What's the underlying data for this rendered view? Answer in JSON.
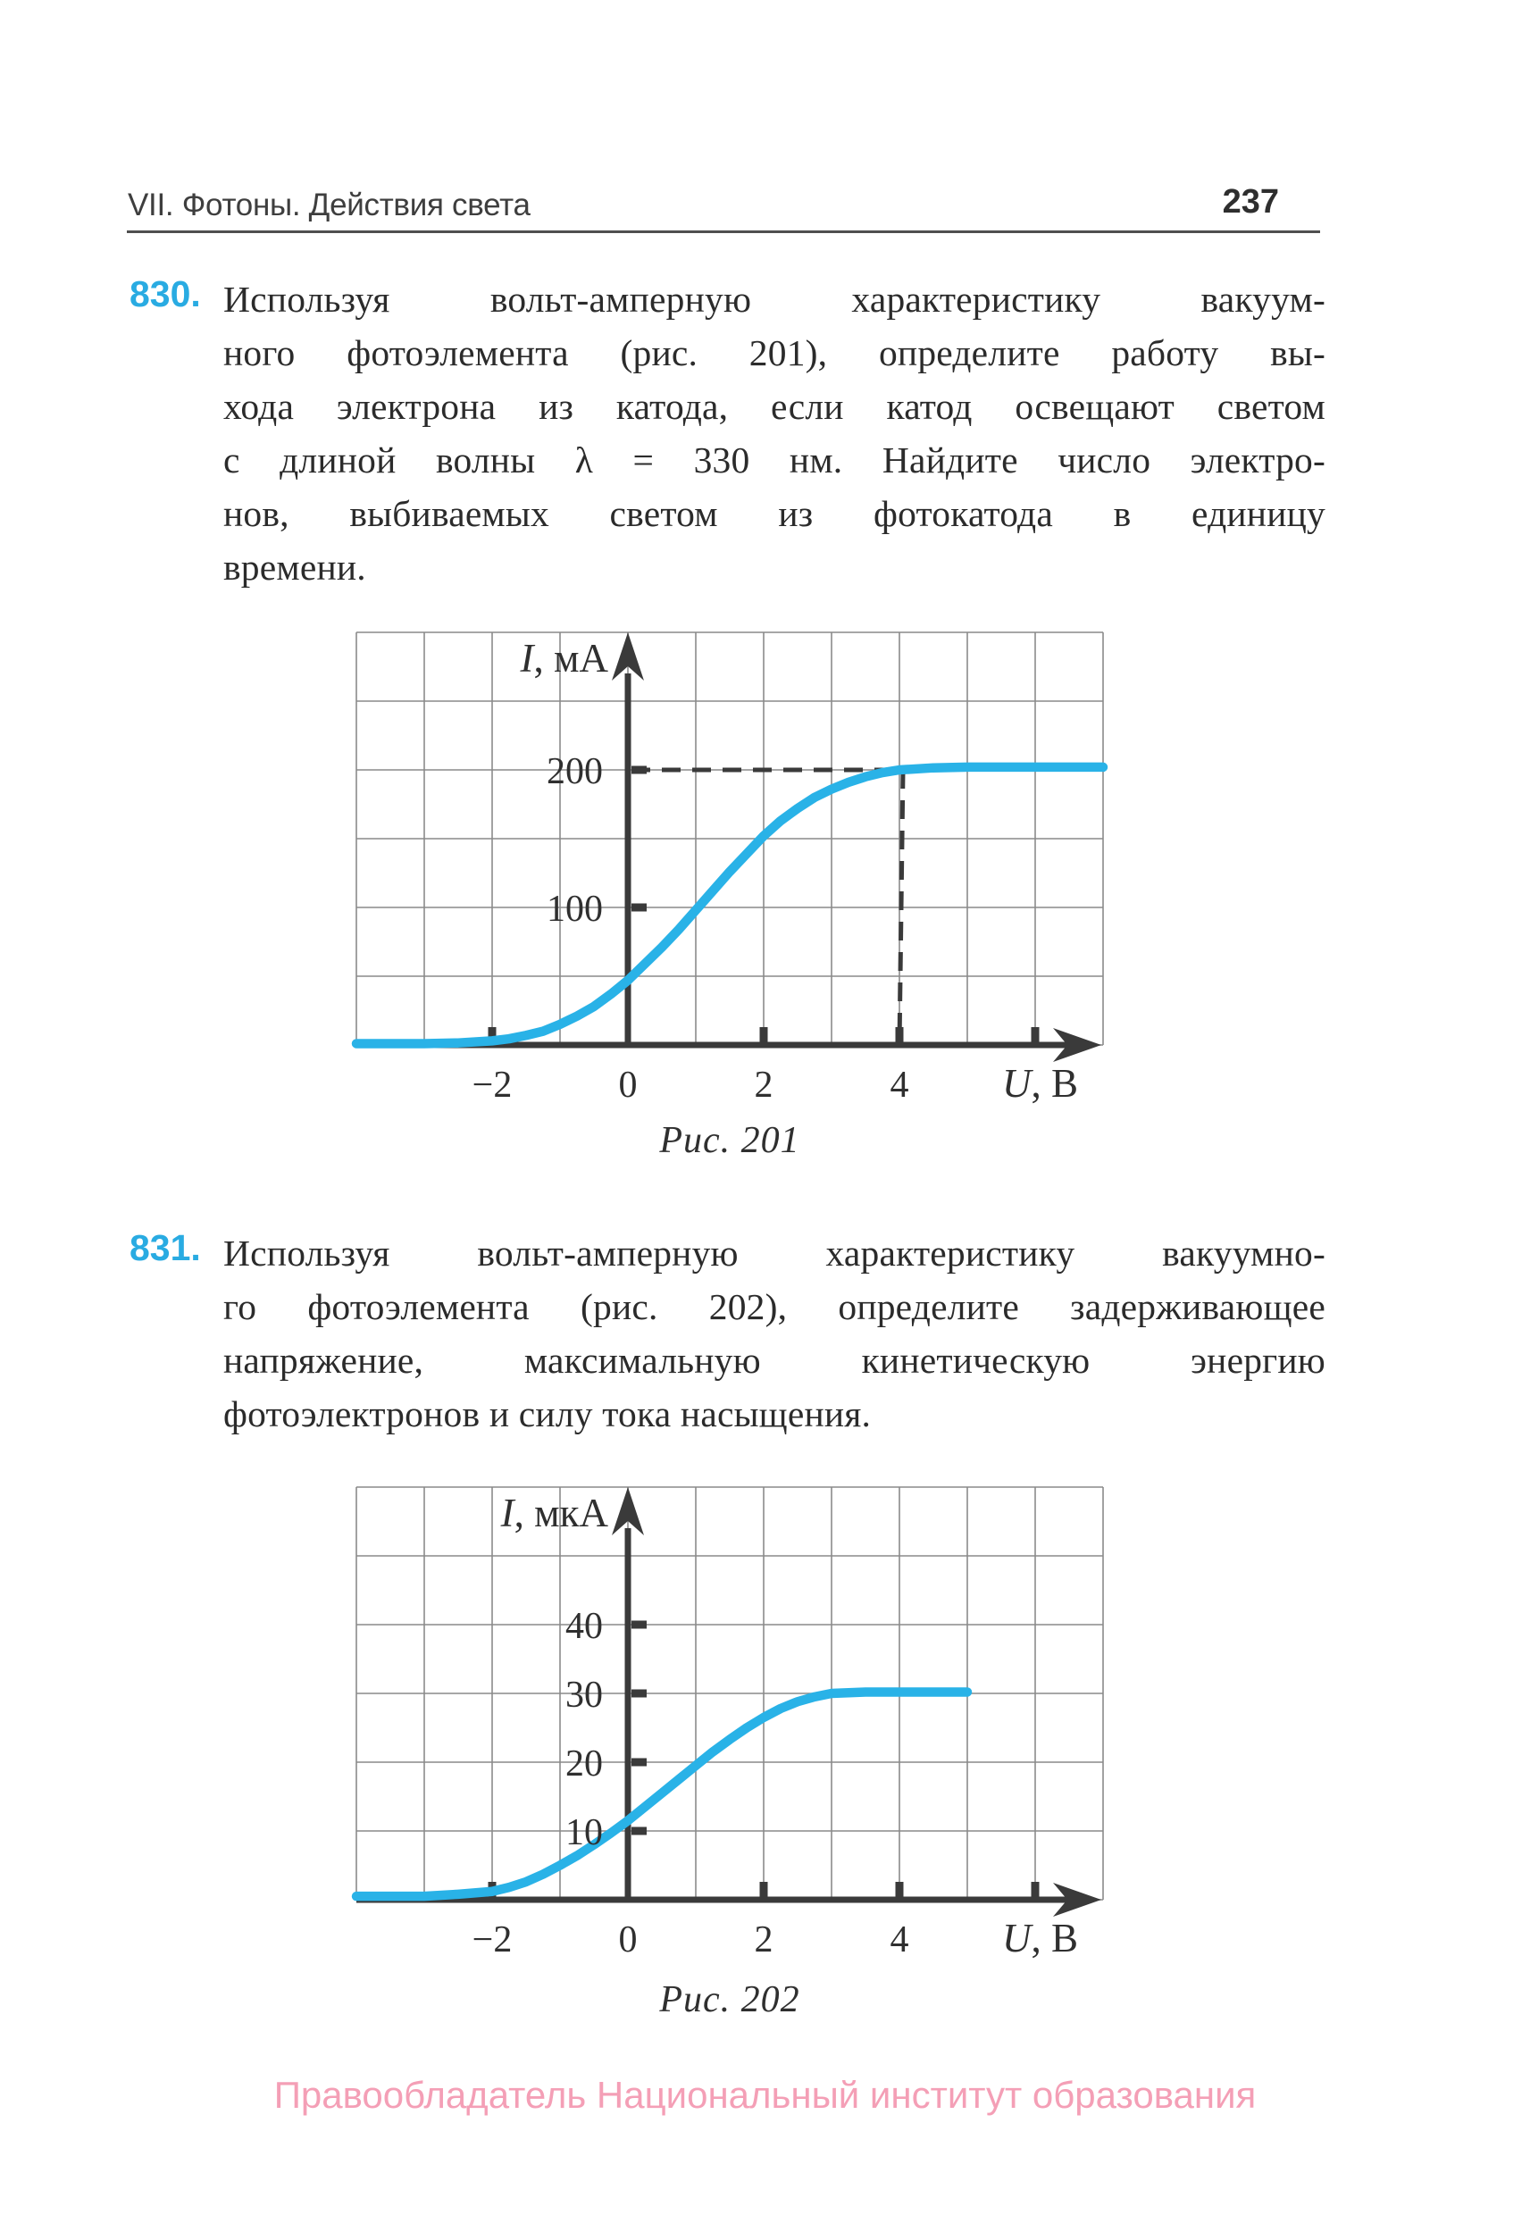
{
  "page": {
    "header": "VII. Фотоны. Действия света",
    "number": "237"
  },
  "problems": [
    {
      "number": "830.",
      "lines": [
        "Используя вольт-амперную характеристику вакуум-",
        "ного фотоэлемента (рис. 201), определите работу вы-",
        "хода электрона из катода, если катод освещают светом",
        "с длиной волны λ = 330 нм. Найдите число электро-",
        "нов, выбиваемых светом из фотокатода в единицу",
        "времени."
      ]
    },
    {
      "number": "831.",
      "lines": [
        "Используя вольт-амперную характеристику вакуумно-",
        "го фотоэлемента (рис. 202), определите задерживающее",
        "напряжение, максимальную кинетическую энергию",
        "фотоэлектронов и силу тока насыщения."
      ]
    }
  ],
  "figures": [
    {
      "caption": "Рис. 201"
    },
    {
      "caption": "Рис. 202"
    }
  ],
  "footer": {
    "text": "Правообладатель Национальный институт образования"
  },
  "colors": {
    "accent_blue": "#29abe2",
    "curve_blue": "#29b2e7",
    "footer_pink": "#f49fb6",
    "grid_gray": "#8a8a8a",
    "axis_dark": "#3a3a3a"
  },
  "chart_data": [
    {
      "type": "line",
      "title": "Рис. 201",
      "xlabel": "U, В",
      "ylabel": "I, мА",
      "xlim": [
        -4,
        7
      ],
      "ylim": [
        0,
        300
      ],
      "x_grid_step": 1,
      "y_grid_step": 50,
      "grid": true,
      "xtick_values": [
        -2,
        0,
        2,
        4
      ],
      "xtick_labels": [
        "−2",
        "0",
        "2",
        "4"
      ],
      "ytick_values": [
        100,
        200
      ],
      "ytick_labels": [
        "100",
        "200"
      ],
      "axis_tick_marks_x": [
        -2,
        2,
        4,
        6
      ],
      "axis_tick_marks_y": [
        100,
        200
      ],
      "series": [
        {
          "name": "photocurrent-vs-voltage",
          "points": [
            [
              -4,
              1
            ],
            [
              -3,
              1
            ],
            [
              -2.5,
              1.5
            ],
            [
              -2,
              3
            ],
            [
              -1.75,
              4.5
            ],
            [
              -1.5,
              7
            ],
            [
              -1.25,
              10
            ],
            [
              -1,
              15
            ],
            [
              -0.75,
              21
            ],
            [
              -0.5,
              28
            ],
            [
              -0.25,
              37
            ],
            [
              0,
              47
            ],
            [
              0.25,
              59
            ],
            [
              0.5,
              71
            ],
            [
              0.75,
              84
            ],
            [
              1,
              98
            ],
            [
              1.25,
              112
            ],
            [
              1.5,
              126
            ],
            [
              1.75,
              139
            ],
            [
              2,
              152
            ],
            [
              2.25,
              163
            ],
            [
              2.5,
              172
            ],
            [
              2.75,
              180
            ],
            [
              3,
              186
            ],
            [
              3.25,
              191
            ],
            [
              3.5,
              195
            ],
            [
              3.75,
              198
            ],
            [
              4,
              200
            ],
            [
              4.5,
              201.5
            ],
            [
              5,
              202
            ],
            [
              6,
              202
            ],
            [
              7,
              202
            ]
          ]
        }
      ],
      "dashed_guides": [
        {
          "from": [
            0,
            200
          ],
          "to": [
            4,
            200
          ]
        },
        {
          "from": [
            4,
            200
          ],
          "to": [
            4,
            0
          ]
        }
      ]
    },
    {
      "type": "line",
      "title": "Рис. 202",
      "xlabel": "U, В",
      "ylabel": "I, мкА",
      "xlim": [
        -4,
        7
      ],
      "ylim": [
        0,
        60
      ],
      "x_grid_step": 1,
      "y_grid_step": 10,
      "grid": true,
      "xtick_values": [
        -2,
        0,
        2,
        4
      ],
      "xtick_labels": [
        "−2",
        "0",
        "2",
        "4"
      ],
      "ytick_values": [
        10,
        20,
        30,
        40
      ],
      "ytick_labels": [
        "10",
        "20",
        "30",
        "40"
      ],
      "axis_tick_marks_x": [
        -2,
        2,
        4,
        6
      ],
      "axis_tick_marks_y": [
        10,
        20,
        30,
        40
      ],
      "series": [
        {
          "name": "photocurrent-vs-voltage",
          "points": [
            [
              -4,
              0.5
            ],
            [
              -3,
              0.5
            ],
            [
              -2.5,
              0.8
            ],
            [
              -2,
              1.2
            ],
            [
              -1.75,
              1.8
            ],
            [
              -1.5,
              2.6
            ],
            [
              -1.25,
              3.7
            ],
            [
              -1,
              5
            ],
            [
              -0.75,
              6.4
            ],
            [
              -0.5,
              8
            ],
            [
              -0.25,
              9.7
            ],
            [
              0,
              11.5
            ],
            [
              0.25,
              13.5
            ],
            [
              0.5,
              15.5
            ],
            [
              0.75,
              17.5
            ],
            [
              1,
              19.5
            ],
            [
              1.25,
              21.5
            ],
            [
              1.5,
              23.3
            ],
            [
              1.75,
              25
            ],
            [
              2,
              26.5
            ],
            [
              2.25,
              27.8
            ],
            [
              2.5,
              28.8
            ],
            [
              2.75,
              29.5
            ],
            [
              3,
              30
            ],
            [
              3.5,
              30.2
            ],
            [
              4,
              30.2
            ],
            [
              4.5,
              30.2
            ],
            [
              5,
              30.2
            ]
          ]
        }
      ],
      "dashed_guides": []
    }
  ]
}
